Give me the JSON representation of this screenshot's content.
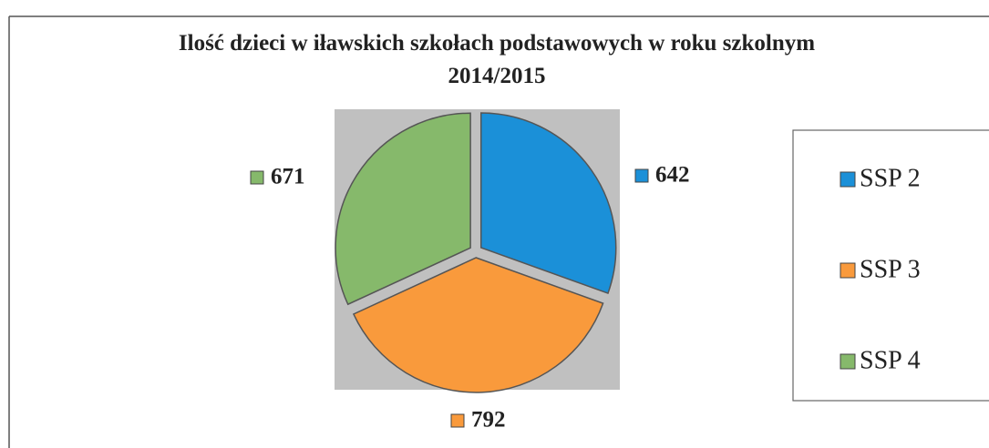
{
  "chart_data": {
    "type": "pie",
    "title": "Ilość dzieci w iławskich szkołach podstawowych  w roku szkolnym 2014/2015",
    "categories": [
      "SSP 2",
      "SSP 3",
      "SSP 4"
    ],
    "values": [
      642,
      792,
      671
    ],
    "colors": [
      "#1b90d8",
      "#f99a3c",
      "#86b96b"
    ],
    "legend": "right"
  }
}
